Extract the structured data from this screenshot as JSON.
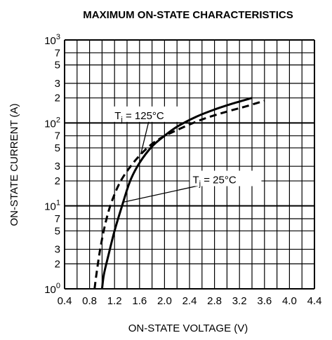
{
  "chart_data": {
    "type": "line",
    "title": "MAXIMUM ON-STATE CHARACTERISTICS",
    "xlabel": "ON-STATE VOLTAGE  (V)",
    "ylabel": "ON-STATE CURRENT  (A)",
    "x_scale": "linear",
    "y_scale": "log",
    "xlim": [
      0.4,
      4.4
    ],
    "ylim": [
      1,
      1000
    ],
    "grid": true,
    "x_ticks": [
      "0.4",
      "0.8",
      "1.2",
      "1.6",
      "2.0",
      "2.4",
      "2.8",
      "3.2",
      "3.6",
      "4.0",
      "4.4"
    ],
    "y_ticks": [
      {
        "value": 1,
        "base": "10",
        "exp": "0"
      },
      {
        "value": 2,
        "label": "2"
      },
      {
        "value": 3,
        "label": "3"
      },
      {
        "value": 5,
        "label": "5"
      },
      {
        "value": 7,
        "label": "7"
      },
      {
        "value": 10,
        "base": "10",
        "exp": "1"
      },
      {
        "value": 20,
        "label": "2"
      },
      {
        "value": 30,
        "label": "3"
      },
      {
        "value": 50,
        "label": "5"
      },
      {
        "value": 70,
        "label": "7"
      },
      {
        "value": 100,
        "base": "10",
        "exp": "2"
      },
      {
        "value": 200,
        "label": "2"
      },
      {
        "value": 300,
        "label": "3"
      },
      {
        "value": 500,
        "label": "5"
      },
      {
        "value": 700,
        "label": "7"
      },
      {
        "value": 1000,
        "base": "10",
        "exp": "3"
      }
    ],
    "series": [
      {
        "label_main": "T",
        "label_sub": "j",
        "label_rest": " = 25°C",
        "style": "solid",
        "x": [
          1.0,
          1.03,
          1.1,
          1.2,
          1.32,
          1.45,
          1.6,
          1.8,
          2.0,
          2.2,
          2.5,
          2.8,
          3.1,
          3.4
        ],
        "y": [
          1,
          1.5,
          2.5,
          5,
          10,
          20,
          33,
          52,
          70,
          90,
          118,
          145,
          172,
          200
        ]
      },
      {
        "label_main": "T",
        "label_sub": "j",
        "label_rest": " = 125°C",
        "style": "dashed",
        "x": [
          0.88,
          0.91,
          0.97,
          1.05,
          1.15,
          1.3,
          1.5,
          1.7,
          1.9,
          2.2,
          2.6,
          3.0,
          3.3,
          3.6
        ],
        "y": [
          1,
          1.5,
          3,
          6,
          11,
          20,
          33,
          48,
          63,
          82,
          110,
          137,
          158,
          185
        ]
      }
    ],
    "annotations": [
      {
        "series_index": 1,
        "label_x": 1.2,
        "label_y": 125,
        "point_x": 1.62,
        "point_y": 42
      },
      {
        "series_index": 0,
        "label_x": 2.45,
        "label_y": 21,
        "point_x": 1.32,
        "point_y": 11
      }
    ]
  }
}
